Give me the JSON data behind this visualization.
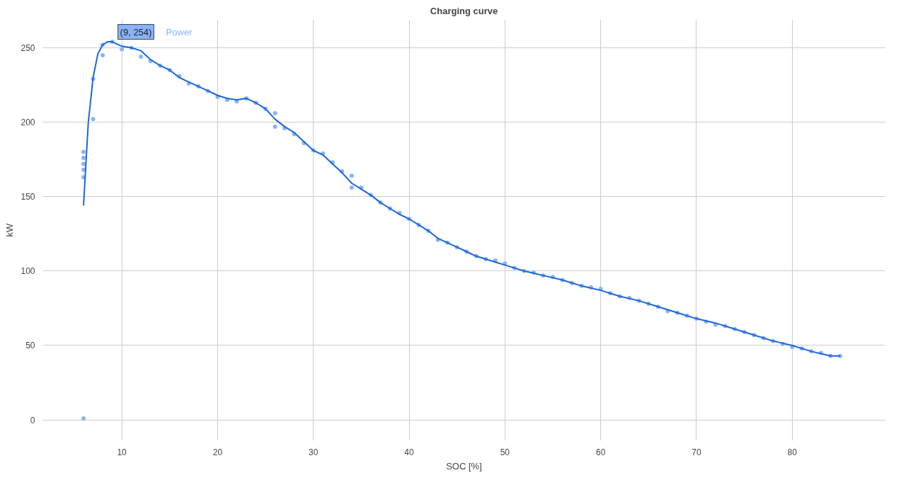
{
  "chart_data": {
    "type": "scatter",
    "title": "Charging curve",
    "xlabel": "SOC [%]",
    "ylabel": "kW",
    "xlim": [
      1.75,
      89.7
    ],
    "ylim": [
      -14,
      269
    ],
    "xticks": [
      10,
      20,
      30,
      40,
      50,
      60,
      70,
      80
    ],
    "yticks": [
      0,
      50,
      100,
      150,
      200,
      250
    ],
    "grid": true,
    "annotations": [
      {
        "text": "(9, 254)",
        "x": 9,
        "y": 254
      }
    ],
    "series": [
      {
        "name": "Power",
        "marker": "circle",
        "color": "#8ab4f8",
        "x": [
          6,
          6,
          6,
          6,
          6,
          6,
          7,
          7,
          8,
          8,
          9,
          10,
          11,
          12,
          13,
          14,
          15,
          16,
          17,
          18,
          19,
          20,
          21,
          22,
          23,
          24,
          25,
          26,
          26,
          27,
          28,
          29,
          30,
          31,
          32,
          33,
          34,
          34,
          35,
          36,
          37,
          38,
          39,
          40,
          41,
          42,
          43,
          44,
          45,
          46,
          47,
          48,
          49,
          50,
          51,
          52,
          53,
          54,
          55,
          56,
          57,
          58,
          59,
          60,
          61,
          62,
          63,
          64,
          65,
          66,
          67,
          68,
          69,
          70,
          71,
          72,
          73,
          74,
          75,
          76,
          77,
          78,
          79,
          80,
          81,
          82,
          83,
          84,
          85
        ],
        "values": [
          180,
          176,
          172,
          168,
          163,
          1,
          229,
          202,
          252,
          245,
          254,
          249,
          250,
          244,
          241,
          238,
          235,
          231,
          226,
          224,
          221,
          217,
          215,
          214,
          216,
          213,
          209,
          206,
          197,
          196,
          192,
          186,
          181,
          179,
          173,
          167,
          164,
          156,
          156,
          151,
          146,
          142,
          139,
          135,
          131,
          127,
          121,
          119,
          116,
          113,
          110,
          108,
          107,
          105,
          102,
          100,
          99,
          97,
          96,
          94,
          92,
          90,
          89,
          88,
          85,
          83,
          82,
          80,
          78,
          76,
          73,
          72,
          70,
          68,
          66,
          64,
          63,
          61,
          59,
          57,
          55,
          53,
          51,
          49,
          48,
          46,
          45,
          43,
          43
        ]
      },
      {
        "type": "line",
        "color": "#1a66d9",
        "line_style": "solid",
        "x": [
          6,
          6.5,
          7,
          7.5,
          8,
          8.5,
          9,
          10,
          11,
          12,
          13,
          14,
          15,
          16,
          17,
          18,
          19,
          20,
          21,
          22,
          23,
          24,
          25,
          26,
          27,
          28,
          29,
          30,
          31,
          32,
          33,
          34,
          35,
          36,
          37,
          38,
          39,
          40,
          41,
          42,
          43,
          44,
          45,
          46,
          47,
          48,
          49,
          50,
          52,
          54,
          56,
          58,
          60,
          62,
          64,
          66,
          68,
          70,
          72,
          74,
          76,
          78,
          80,
          82,
          84,
          85
        ],
        "values": [
          144,
          200,
          230,
          246,
          252,
          254,
          254,
          251,
          250,
          248,
          242,
          238,
          235,
          230,
          227,
          224,
          221,
          218,
          216,
          215,
          216,
          213,
          209,
          202,
          197,
          193,
          187,
          181,
          178,
          172,
          166,
          159,
          155,
          151,
          146,
          142,
          138,
          135,
          131,
          127,
          122,
          119,
          116,
          113,
          110,
          108,
          106,
          104,
          100,
          97,
          94,
          90,
          87,
          83,
          80,
          76,
          72,
          68,
          65,
          61,
          57,
          53,
          50,
          46,
          43,
          43
        ]
      }
    ]
  }
}
